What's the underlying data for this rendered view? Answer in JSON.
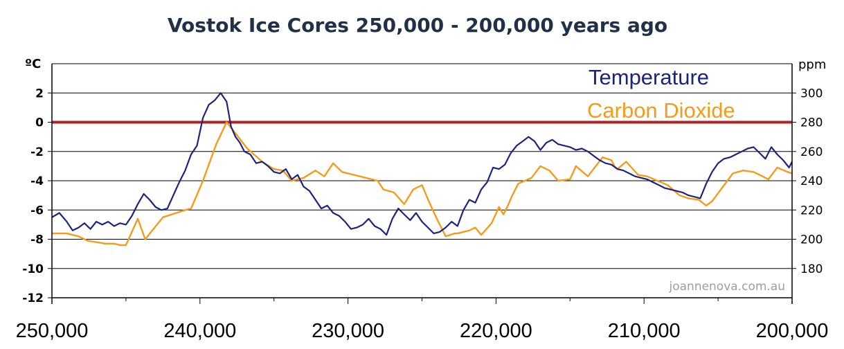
{
  "colors": {
    "temperature": "#1a237e",
    "co2": "#f59b1a",
    "zero_line": "#b22222",
    "grid": "#000000",
    "title": "#1f3048",
    "credit": "#9e9e9e"
  },
  "chart_data": {
    "type": "line",
    "title": "Vostok Ice Cores   250,000 - 200,000 years ago",
    "y_left_unit": "ºC",
    "y_right_unit": "ppm",
    "xlim": [
      250000,
      200000
    ],
    "ylim_left": [
      -12,
      4
    ],
    "ylim_right": [
      160,
      320
    ],
    "x_ticks": [
      250000,
      240000,
      230000,
      220000,
      210000,
      200000
    ],
    "x_tick_labels": [
      "250,000",
      "240,000",
      "230,000",
      "220,000",
      "210,000",
      "200,000"
    ],
    "y_left_ticks": [
      2,
      0,
      -2,
      -4,
      -6,
      -8,
      -10,
      -12
    ],
    "y_left_tick_labels": [
      "2",
      "0",
      "-2",
      "-4",
      "-6",
      "-8",
      "-10",
      "-12"
    ],
    "y_right_ticks": [
      300,
      280,
      260,
      240,
      220,
      200,
      180
    ],
    "y_right_tick_labels": [
      "300",
      "280",
      "260",
      "240",
      "220",
      "200",
      "180"
    ],
    "grid": true,
    "legend": {
      "position": "top-right",
      "entries": [
        "Temperature",
        "Carbon Dioxide"
      ]
    },
    "reference_line": {
      "axis": "left",
      "value": 0
    },
    "credit": "joannenova.com.au",
    "series": [
      {
        "name": "Temperature",
        "axis": "left",
        "x": [
          250000,
          249500,
          249000,
          248600,
          248200,
          247800,
          247400,
          247000,
          246600,
          246200,
          245800,
          245400,
          245000,
          244600,
          244200,
          243800,
          243400,
          243000,
          242600,
          242200,
          241800,
          241400,
          241000,
          240600,
          240200,
          239800,
          239400,
          239000,
          238600,
          238200,
          237900,
          237600,
          237300,
          237000,
          236600,
          236200,
          235800,
          235400,
          235000,
          234600,
          234200,
          233800,
          233400,
          233000,
          232600,
          232200,
          231800,
          231400,
          231000,
          230600,
          230200,
          229800,
          229400,
          229000,
          228600,
          228200,
          227800,
          227400,
          227000,
          226600,
          226200,
          225800,
          225400,
          225000,
          224600,
          224200,
          223800,
          223400,
          223000,
          222600,
          222200,
          221800,
          221400,
          221000,
          220600,
          220200,
          219800,
          219400,
          219000,
          218600,
          218200,
          217800,
          217400,
          217000,
          216600,
          216200,
          215800,
          215400,
          215000,
          214600,
          214200,
          213800,
          213400,
          213000,
          212600,
          212200,
          211800,
          211400,
          211000,
          210600,
          210200,
          209800,
          209400,
          209000,
          208600,
          208200,
          207800,
          207400,
          207000,
          206600,
          206200,
          205800,
          205400,
          205000,
          204600,
          204200,
          203800,
          203400,
          203000,
          202600,
          202200,
          201800,
          201400,
          201000,
          200600,
          200200,
          200000
        ],
        "y": [
          -6.5,
          -6.2,
          -6.8,
          -7.4,
          -7.2,
          -6.9,
          -7.3,
          -6.8,
          -7.0,
          -6.8,
          -7.1,
          -6.9,
          -7.0,
          -6.4,
          -5.6,
          -4.9,
          -5.3,
          -5.8,
          -6.0,
          -5.9,
          -5.0,
          -4.1,
          -3.3,
          -2.2,
          -1.6,
          0.3,
          1.2,
          1.5,
          2.0,
          1.4,
          -0.3,
          -1.0,
          -1.4,
          -2.0,
          -2.2,
          -2.8,
          -2.7,
          -3.0,
          -3.4,
          -3.5,
          -3.2,
          -3.9,
          -3.6,
          -4.4,
          -4.7,
          -5.3,
          -5.9,
          -5.7,
          -6.2,
          -6.4,
          -6.8,
          -7.3,
          -7.2,
          -7.0,
          -6.6,
          -7.1,
          -7.3,
          -7.7,
          -6.6,
          -5.9,
          -6.3,
          -6.7,
          -6.2,
          -6.8,
          -7.2,
          -7.6,
          -7.5,
          -7.2,
          -6.8,
          -7.1,
          -6.0,
          -5.3,
          -5.5,
          -4.6,
          -4.1,
          -3.1,
          -3.2,
          -2.9,
          -2.1,
          -1.6,
          -1.3,
          -1.0,
          -1.3,
          -1.9,
          -1.4,
          -1.2,
          -1.5,
          -1.6,
          -1.7,
          -1.9,
          -1.8,
          -2.0,
          -2.3,
          -2.6,
          -2.8,
          -2.9,
          -3.2,
          -3.3,
          -3.5,
          -3.7,
          -3.8,
          -3.9,
          -4.1,
          -4.3,
          -4.5,
          -4.6,
          -4.7,
          -4.8,
          -5.0,
          -5.1,
          -5.2,
          -4.2,
          -3.4,
          -2.8,
          -2.5,
          -2.4,
          -2.2,
          -2.0,
          -1.8,
          -1.7,
          -2.1,
          -2.5,
          -1.7,
          -2.2,
          -2.6,
          -3.1,
          -2.7
        ]
      },
      {
        "name": "Carbon Dioxide",
        "axis": "right",
        "x": [
          250000,
          249000,
          248200,
          247600,
          247000,
          246400,
          245800,
          245400,
          245000,
          244200,
          243700,
          242500,
          241000,
          240600,
          239800,
          238900,
          238200,
          237800,
          236800,
          235800,
          235000,
          234400,
          233800,
          233000,
          232200,
          231600,
          231000,
          230400,
          228000,
          227600,
          226900,
          226200,
          225600,
          225400,
          225000,
          224500,
          224000,
          223400,
          222800,
          222600,
          221800,
          221400,
          221000,
          220300,
          219800,
          219500,
          219200,
          218900,
          218500,
          217600,
          217000,
          216400,
          215800,
          215000,
          214600,
          213800,
          212800,
          212200,
          212000,
          211800,
          211200,
          210400,
          209800,
          208400,
          207600,
          207000,
          206300,
          205800,
          205400,
          204000,
          203300,
          202600,
          201600,
          201000,
          200300,
          200000
        ],
        "y": [
          204,
          204,
          202,
          199,
          198,
          197,
          197,
          196,
          196,
          214,
          200,
          215,
          220,
          221,
          240,
          265,
          280,
          275,
          262,
          253,
          248,
          247,
          240,
          242,
          247,
          243,
          252,
          246,
          240,
          234,
          232,
          224,
          234,
          235,
          237,
          225,
          214,
          202,
          204,
          204,
          206,
          208,
          203,
          211,
          222,
          217,
          223,
          230,
          238,
          242,
          250,
          247,
          240,
          241,
          250,
          243,
          256,
          254,
          250,
          248,
          253,
          244,
          243,
          237,
          230,
          228,
          227,
          223,
          226,
          245,
          247,
          246,
          241,
          249,
          246,
          245
        ]
      }
    ]
  }
}
